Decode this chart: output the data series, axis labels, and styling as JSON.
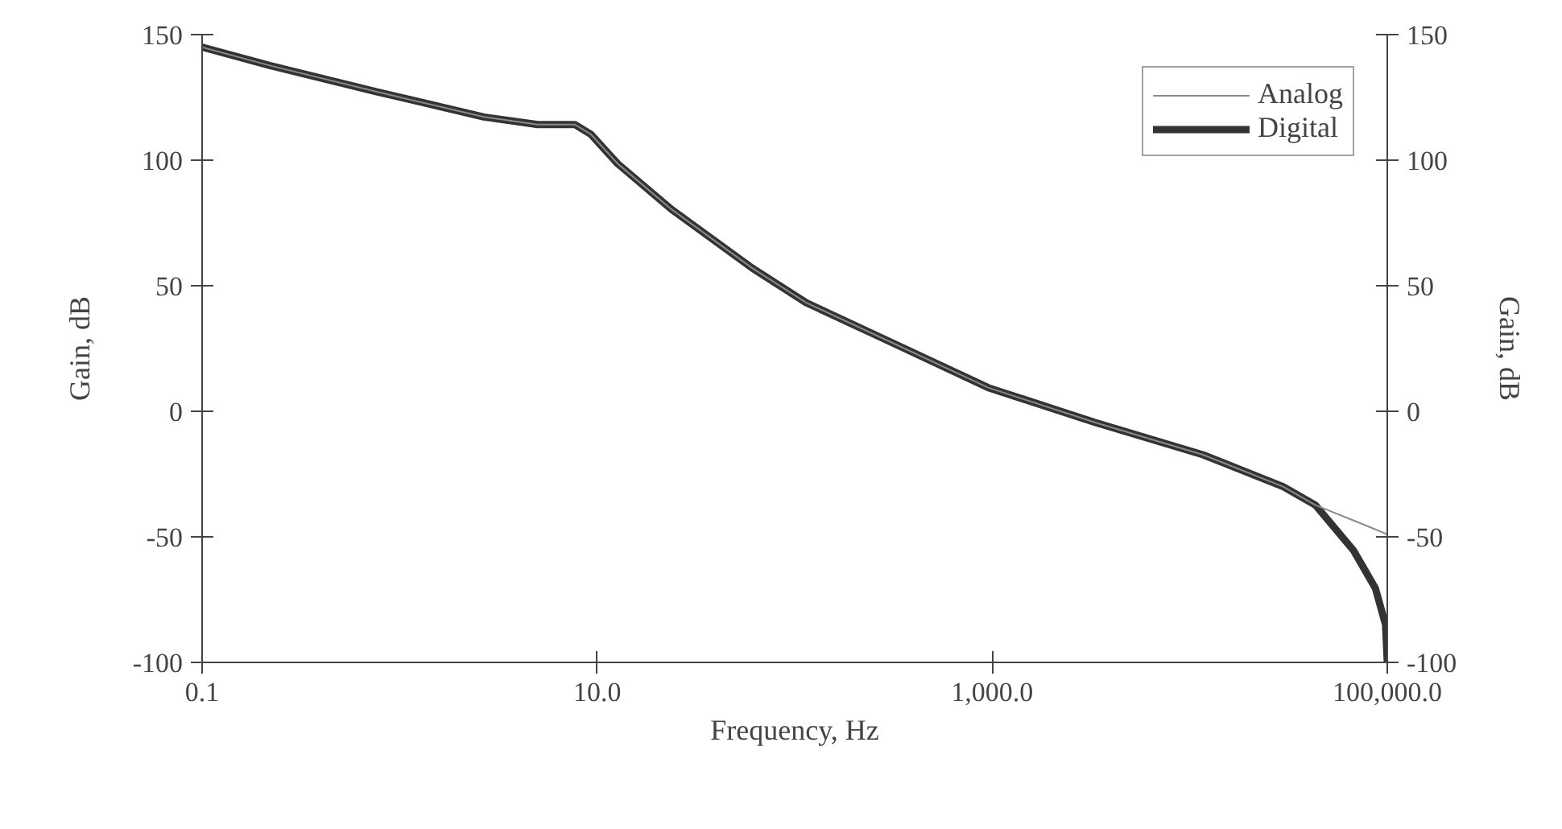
{
  "chart_data": {
    "type": "line",
    "xlabel": "Frequency, Hz",
    "ylabel": "Gain, dB",
    "y2label": "Gain, dB",
    "log": "x",
    "xlim": [
      0.1,
      100000
    ],
    "xticks": [
      {
        "value": 0.1,
        "label": "0.1"
      },
      {
        "value": 10,
        "label": "10.0"
      },
      {
        "value": 1000,
        "label": "1,000.0"
      },
      {
        "value": 100000,
        "label": "100,000.0"
      }
    ],
    "ylim": [
      -100,
      150
    ],
    "yticks": [
      -100,
      -50,
      0,
      50,
      100,
      150
    ],
    "y2lim": [
      -100,
      150
    ],
    "y2ticks": [
      -100,
      -50,
      0,
      50,
      100,
      150
    ],
    "grid": false,
    "legend": "top right",
    "marker": "none",
    "line_style": "solid",
    "series": [
      {
        "name": "Analog",
        "color": "#8a8a8a",
        "x": [
          0.1,
          0.22,
          0.76,
          2.67,
          5.0,
          7.7,
          9.3,
          12.7,
          23.8,
          61,
          114,
          273,
          955,
          3330,
          11660,
          29700,
          43300,
          70000,
          100000
        ],
        "values": [
          145,
          137.7,
          127.3,
          117.2,
          114.2,
          114.2,
          110.3,
          98.6,
          80.4,
          57,
          43.3,
          29.4,
          9.4,
          -4.5,
          -17.3,
          -30,
          -37.4,
          -44,
          -49
        ]
      },
      {
        "name": "Digital",
        "color": "#333333",
        "x": [
          0.1,
          0.22,
          0.76,
          2.67,
          5.0,
          7.7,
          9.3,
          12.7,
          23.8,
          61,
          114,
          273,
          955,
          3330,
          11660,
          29700,
          43300,
          67600,
          87000,
          98000,
          100000
        ],
        "values": [
          145,
          137.7,
          127.3,
          117.2,
          114.2,
          114.2,
          110.3,
          98.6,
          80.4,
          57,
          43.3,
          29.4,
          9.4,
          -4.5,
          -17.3,
          -30,
          -37.4,
          -55.5,
          -70.4,
          -85,
          -100
        ]
      }
    ]
  }
}
